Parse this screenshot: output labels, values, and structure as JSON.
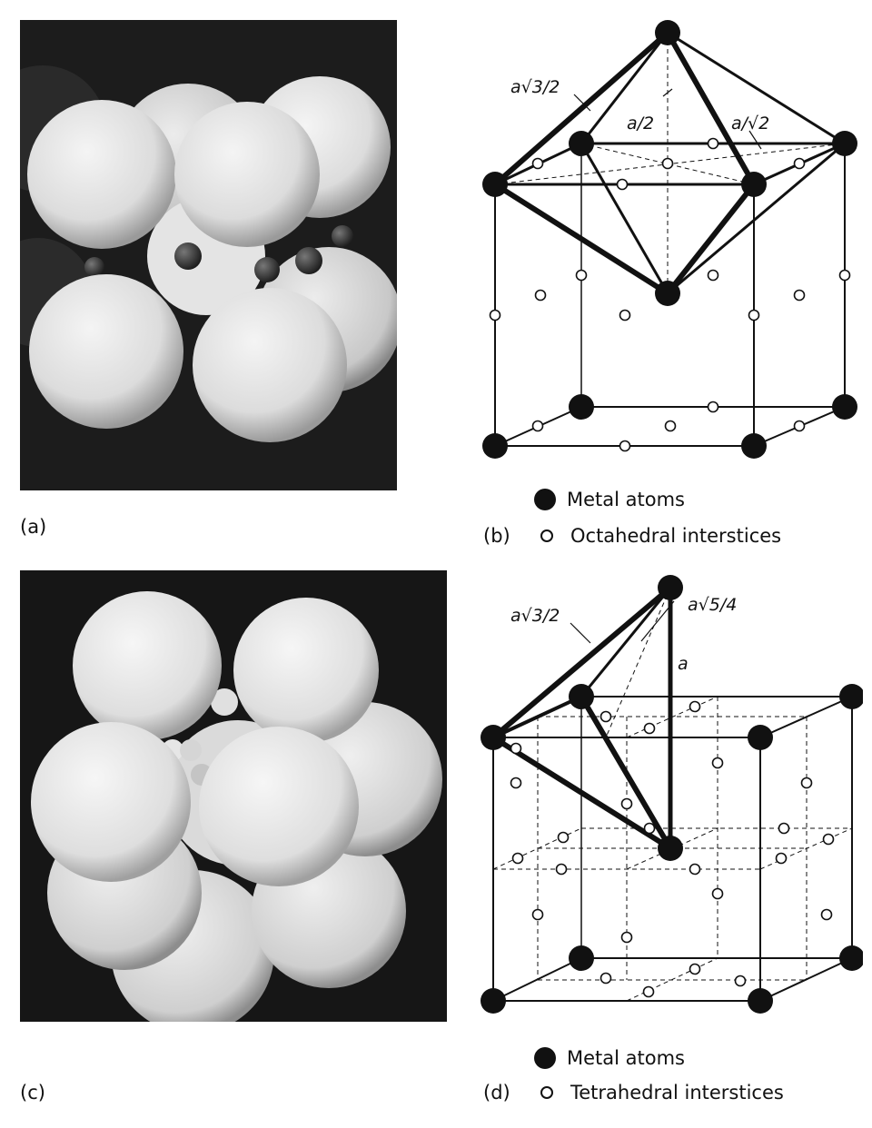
{
  "panels": {
    "a": {
      "label": "(a)"
    },
    "b": {
      "label": "(b)",
      "annotations": {
        "edge_long": "a√3/2",
        "half_height": "a/2",
        "diag_short": "a/√2"
      },
      "legend": {
        "metal": "Metal atoms",
        "interstice": "Octahedral interstices"
      }
    },
    "c": {
      "label": "(c)"
    },
    "d": {
      "label": "(d)",
      "annotations": {
        "edge_long": "a√3/2",
        "diag": "a√5/4",
        "height": "a"
      },
      "legend": {
        "metal": "Metal atoms",
        "interstice": "Tetrahedral interstices"
      }
    }
  }
}
